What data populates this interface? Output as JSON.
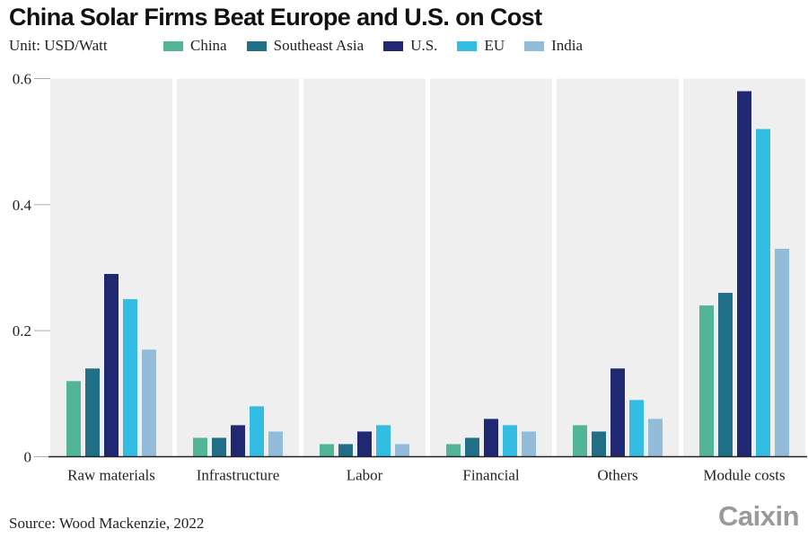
{
  "header": {
    "title": "China Solar Firms Beat Europe and U.S. on Cost",
    "unit": "Unit: USD/Watt"
  },
  "footer": {
    "source": "Source: Wood Mackenzie, 2022",
    "logo": "Caixin"
  },
  "chart_data": {
    "type": "bar",
    "title": "China Solar Firms Beat Europe and U.S. on Cost",
    "subtitle": "Unit: USD/Watt",
    "xlabel": "",
    "ylabel": "USD/Watt",
    "ylim": [
      0,
      0.6
    ],
    "yticks": [
      0,
      0.2,
      0.4,
      0.6
    ],
    "ytick_labels": [
      "0",
      "0.2",
      "0.4",
      "0.6"
    ],
    "grid": false,
    "legend_position": "top",
    "categories": [
      "Raw materials",
      "Infrastructure",
      "Labor",
      "Financial",
      "Others",
      "Module costs"
    ],
    "series": [
      {
        "name": "China",
        "color": "#52b597",
        "values": [
          0.12,
          0.03,
          0.02,
          0.02,
          0.05,
          0.24
        ]
      },
      {
        "name": "Southeast Asia",
        "color": "#206f86",
        "values": [
          0.14,
          0.03,
          0.02,
          0.03,
          0.04,
          0.26
        ]
      },
      {
        "name": "U.S.",
        "color": "#1f2870",
        "values": [
          0.29,
          0.05,
          0.04,
          0.06,
          0.14,
          0.58
        ]
      },
      {
        "name": "EU",
        "color": "#33bde2",
        "values": [
          0.25,
          0.08,
          0.05,
          0.05,
          0.09,
          0.52
        ]
      },
      {
        "name": "India",
        "color": "#93bcda",
        "values": [
          0.17,
          0.04,
          0.02,
          0.04,
          0.06,
          0.33
        ]
      }
    ],
    "source": "Source: Wood Mackenzie, 2022"
  }
}
